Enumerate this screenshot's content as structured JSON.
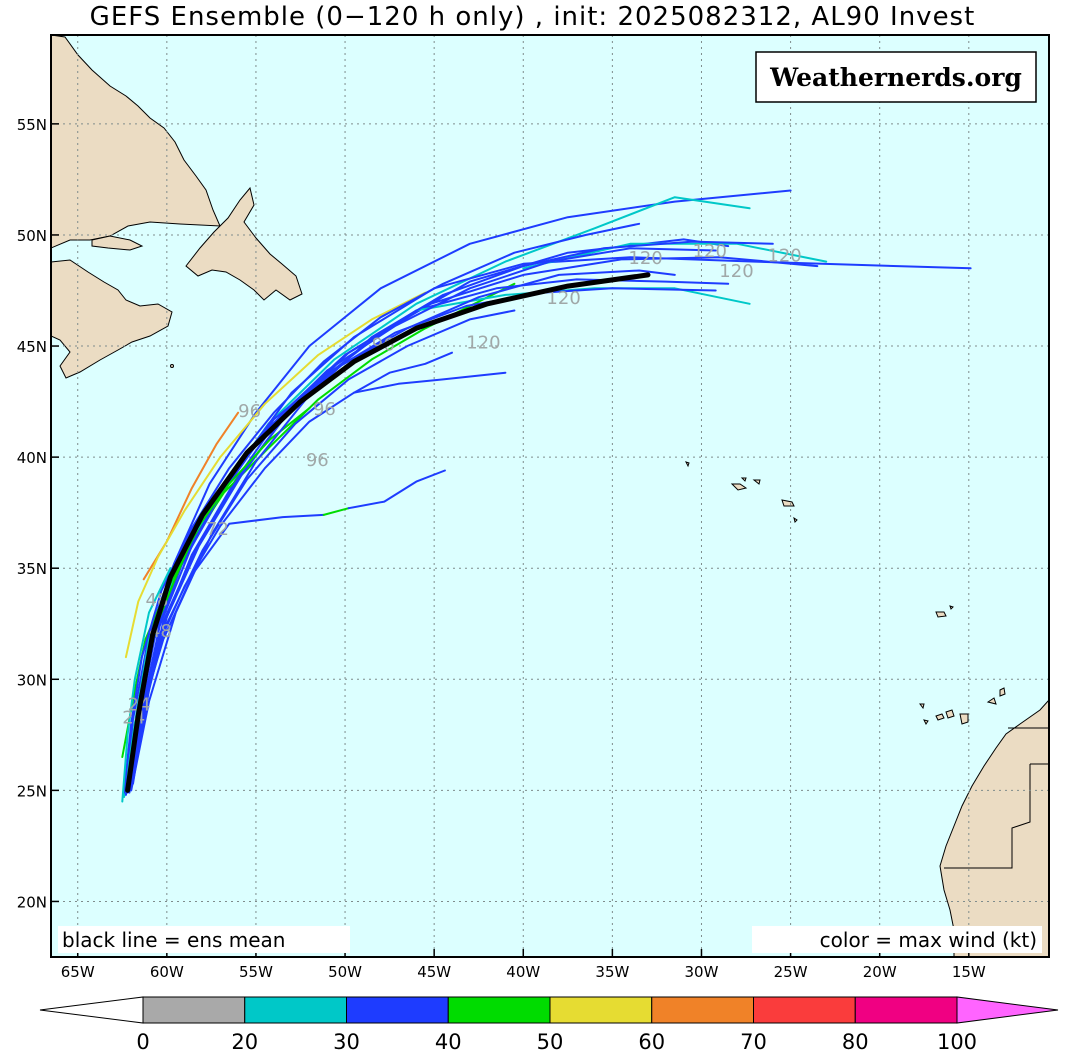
{
  "title": "GEFS Ensemble (0−120 h only) , init: 2025082312, AL90 Invest",
  "watermark": "Weathernerds.org",
  "note_left": "black line = ens mean",
  "note_right": "color = max wind (kt)",
  "lat_labels": [
    "55N",
    "50N",
    "45N",
    "40N",
    "35N",
    "30N",
    "25N",
    "20N"
  ],
  "lon_labels": [
    "65W",
    "60W",
    "55W",
    "50W",
    "45W",
    "40W",
    "35W",
    "30W",
    "25W",
    "20W",
    "15W"
  ],
  "colorbar": {
    "ticks": [
      "0",
      "20",
      "30",
      "40",
      "50",
      "60",
      "70",
      "80",
      "100"
    ],
    "colors": [
      "#a9a9a9",
      "#00c8c8",
      "#1e3cff",
      "#00dc00",
      "#e6dc32",
      "#f08228",
      "#fa3c3c",
      "#f00082"
    ],
    "low_arrow_color": "#ffffff",
    "high_arrow_color": "#ff64ff"
  },
  "map_colors": {
    "ocean": "#dcffff",
    "land": "#ebdcc3",
    "grid": "#7f8c8c"
  },
  "track_labels": [
    {
      "text": "120",
      "lon": -43.2,
      "lat": 44.9
    },
    {
      "text": "120",
      "lon": -38.7,
      "lat": 46.9
    },
    {
      "text": "120",
      "lon": -34.1,
      "lat": 48.7
    },
    {
      "text": "120",
      "lon": -30.5,
      "lat": 49.0
    },
    {
      "text": "120",
      "lon": -26.3,
      "lat": 48.8
    },
    {
      "text": "120",
      "lon": -29.0,
      "lat": 48.1
    },
    {
      "text": "96",
      "lon": -48.5,
      "lat": 44.8
    },
    {
      "text": "96",
      "lon": -56.0,
      "lat": 41.8
    },
    {
      "text": "96",
      "lon": -51.8,
      "lat": 41.9
    },
    {
      "text": "96",
      "lon": -52.2,
      "lat": 39.6
    },
    {
      "text": "72",
      "lon": -57.8,
      "lat": 36.5
    },
    {
      "text": "48",
      "lon": -61.2,
      "lat": 33.3
    },
    {
      "text": "48",
      "lon": -61.0,
      "lat": 31.9
    },
    {
      "text": "24",
      "lon": -62.5,
      "lat": 28.0
    },
    {
      "text": "24",
      "lon": -62.2,
      "lat": 28.6
    }
  ],
  "chart_data": {
    "type": "track-map",
    "lon_range": [
      -66.5,
      -10.5
    ],
    "lat_range": [
      17.5,
      59.0
    ],
    "ens_mean": {
      "name": "ens mean",
      "points": [
        [
          -62.2,
          25.0
        ],
        [
          -61.6,
          28.4
        ],
        [
          -60.8,
          32.0
        ],
        [
          -59.8,
          34.6
        ],
        [
          -58.0,
          37.4
        ],
        [
          -55.5,
          40.2
        ],
        [
          -52.5,
          42.5
        ],
        [
          -49.5,
          44.3
        ],
        [
          -46.0,
          45.8
        ],
        [
          -42.0,
          46.9
        ],
        [
          -37.5,
          47.7
        ],
        [
          -33.0,
          48.2
        ]
      ]
    },
    "members": [
      {
        "color": "#1e3cff",
        "points": [
          [
            -62.1,
            24.9
          ],
          [
            -61.6,
            28.2
          ],
          [
            -60.6,
            32.5
          ],
          [
            -59.2,
            35.2
          ],
          [
            -57.2,
            38.0
          ],
          [
            -54.8,
            40.8
          ],
          [
            -51.5,
            43.4
          ],
          [
            -47.6,
            45.8
          ],
          [
            -43.0,
            47.9
          ],
          [
            -37.5,
            49.2
          ],
          [
            -31.0,
            49.8
          ],
          [
            -28.5,
            49.5
          ]
        ]
      },
      {
        "color": "#1e3cff",
        "points": [
          [
            -62.0,
            25.1
          ],
          [
            -61.3,
            28.8
          ],
          [
            -60.4,
            32.0
          ],
          [
            -58.6,
            35.6
          ],
          [
            -56.2,
            38.9
          ],
          [
            -53.5,
            42.0
          ],
          [
            -50.0,
            44.6
          ],
          [
            -45.2,
            46.9
          ],
          [
            -40.0,
            48.2
          ],
          [
            -34.5,
            48.9
          ],
          [
            -29.0,
            49.0
          ],
          [
            -23.5,
            48.6
          ]
        ]
      },
      {
        "color": "#1e3cff",
        "points": [
          [
            -62.3,
            24.8
          ],
          [
            -61.9,
            28.2
          ],
          [
            -61.0,
            32.0
          ],
          [
            -59.6,
            35.2
          ],
          [
            -57.6,
            38.8
          ],
          [
            -55.0,
            42.0
          ],
          [
            -52.0,
            45.0
          ],
          [
            -48.0,
            47.6
          ],
          [
            -43.0,
            49.6
          ],
          [
            -37.5,
            50.8
          ],
          [
            -31.5,
            51.5
          ],
          [
            -25.0,
            52.0
          ]
        ]
      },
      {
        "color": "#00c8c8",
        "points": [
          [
            -62.4,
            24.7
          ],
          [
            -61.8,
            28.0
          ],
          [
            -61.0,
            31.8
          ],
          [
            -59.4,
            35.0
          ],
          [
            -57.2,
            38.2
          ],
          [
            -54.3,
            41.5
          ],
          [
            -50.6,
            44.4
          ],
          [
            -46.0,
            46.9
          ],
          [
            -41.0,
            48.8
          ],
          [
            -36.0,
            50.3
          ],
          [
            -31.5,
            51.7
          ],
          [
            -27.3,
            51.2
          ]
        ]
      },
      {
        "color": "#1e3cff",
        "points": [
          [
            -62.0,
            25.2
          ],
          [
            -61.4,
            28.6
          ],
          [
            -60.4,
            32.4
          ],
          [
            -58.6,
            36.0
          ],
          [
            -56.0,
            39.6
          ],
          [
            -53.0,
            42.9
          ],
          [
            -49.5,
            45.4
          ],
          [
            -45.0,
            47.6
          ],
          [
            -40.0,
            48.7
          ],
          [
            -34.0,
            49.0
          ],
          [
            -27.0,
            48.8
          ],
          [
            -19.0,
            48.6
          ],
          [
            -14.9,
            48.5
          ]
        ]
      },
      {
        "color": "#1e3cff",
        "points": [
          [
            -62.2,
            24.9
          ],
          [
            -61.5,
            28.3
          ],
          [
            -60.2,
            31.8
          ],
          [
            -58.5,
            34.8
          ],
          [
            -56.5,
            37.0
          ],
          [
            -53.5,
            37.3
          ],
          [
            -51.2,
            37.4
          ]
        ]
      },
      {
        "color": "#00dc00",
        "points": [
          [
            -51.2,
            37.4
          ],
          [
            -49.8,
            37.7
          ]
        ]
      },
      {
        "color": "#1e3cff",
        "points": [
          [
            -49.8,
            37.7
          ],
          [
            -47.8,
            38.0
          ],
          [
            -46.0,
            38.9
          ],
          [
            -44.4,
            39.4
          ]
        ]
      },
      {
        "color": "#1e3cff",
        "points": [
          [
            -62.1,
            25.0
          ],
          [
            -61.5,
            28.3
          ],
          [
            -60.5,
            31.5
          ],
          [
            -59.0,
            34.2
          ],
          [
            -57.0,
            36.9
          ],
          [
            -54.5,
            39.5
          ],
          [
            -52.0,
            41.6
          ],
          [
            -49.5,
            42.9
          ],
          [
            -47.5,
            43.8
          ],
          [
            -45.5,
            44.2
          ],
          [
            -44.0,
            44.7
          ]
        ]
      },
      {
        "color": "#1e3cff",
        "points": [
          [
            -49.5,
            42.9
          ],
          [
            -47.0,
            43.3
          ],
          [
            -44.5,
            43.5
          ],
          [
            -41.0,
            43.8
          ]
        ]
      },
      {
        "color": "#00dc00",
        "points": [
          [
            -62.5,
            26.5
          ],
          [
            -61.8,
            29.5
          ],
          [
            -61.2,
            31.8
          ],
          [
            -60.0,
            34.0
          ],
          [
            -58.6,
            36.2
          ],
          [
            -56.8,
            38.4
          ],
          [
            -54.3,
            40.4
          ],
          [
            -51.5,
            42.6
          ],
          [
            -48.5,
            44.4
          ],
          [
            -45.5,
            45.8
          ],
          [
            -42.5,
            47.0
          ],
          [
            -40.5,
            47.8
          ]
        ]
      },
      {
        "color": "#f08228",
        "points": [
          [
            -61.3,
            34.5
          ],
          [
            -60.0,
            36.2
          ],
          [
            -58.6,
            38.6
          ],
          [
            -57.2,
            40.6
          ],
          [
            -56.0,
            42.0
          ]
        ]
      },
      {
        "color": "#e6dc32",
        "points": [
          [
            -62.3,
            31.0
          ],
          [
            -61.6,
            33.5
          ],
          [
            -60.5,
            35.5
          ],
          [
            -59.0,
            37.6
          ],
          [
            -57.0,
            40.0
          ],
          [
            -54.5,
            42.4
          ],
          [
            -51.5,
            44.6
          ],
          [
            -48.5,
            46.2
          ],
          [
            -45.5,
            47.4
          ]
        ]
      },
      {
        "color": "#1e3cff",
        "points": [
          [
            -61.8,
            26.0
          ],
          [
            -61.0,
            29.5
          ],
          [
            -60.0,
            32.8
          ],
          [
            -58.2,
            36.0
          ],
          [
            -55.8,
            39.2
          ],
          [
            -53.0,
            42.2
          ],
          [
            -49.8,
            44.7
          ],
          [
            -46.0,
            46.6
          ],
          [
            -41.5,
            47.6
          ],
          [
            -37.0,
            48.0
          ],
          [
            -32.0,
            47.9
          ],
          [
            -28.5,
            47.8
          ]
        ]
      },
      {
        "color": "#00c8c8",
        "points": [
          [
            -46.0,
            46.6
          ],
          [
            -41.0,
            47.3
          ],
          [
            -36.0,
            47.6
          ],
          [
            -31.5,
            47.6
          ],
          [
            -27.3,
            46.9
          ]
        ]
      },
      {
        "color": "#1e3cff",
        "points": [
          [
            -62.0,
            25.5
          ],
          [
            -61.2,
            29.0
          ],
          [
            -60.0,
            32.5
          ],
          [
            -58.0,
            35.8
          ],
          [
            -55.5,
            39.0
          ],
          [
            -52.8,
            41.5
          ],
          [
            -49.8,
            43.5
          ],
          [
            -46.5,
            45.0
          ],
          [
            -43.0,
            46.2
          ],
          [
            -40.5,
            46.6
          ]
        ]
      },
      {
        "color": "#00c8c8",
        "points": [
          [
            -40.0,
            48.5
          ],
          [
            -34.0,
            49.6
          ],
          [
            -28.0,
            49.6
          ],
          [
            -23.0,
            48.8
          ]
        ]
      },
      {
        "color": "#1e3cff",
        "points": [
          [
            -62.2,
            25.0
          ],
          [
            -61.5,
            28.5
          ],
          [
            -60.6,
            32.2
          ],
          [
            -59.0,
            35.5
          ],
          [
            -56.8,
            38.6
          ],
          [
            -54.0,
            41.7
          ],
          [
            -50.5,
            44.0
          ],
          [
            -46.5,
            45.8
          ],
          [
            -42.5,
            47.2
          ],
          [
            -38.0,
            48.2
          ],
          [
            -33.5,
            48.4
          ],
          [
            -31.5,
            48.2
          ]
        ]
      },
      {
        "color": "#1e3cff",
        "points": [
          [
            -62.3,
            24.8
          ],
          [
            -61.7,
            28.1
          ],
          [
            -60.8,
            31.6
          ],
          [
            -59.2,
            35.1
          ],
          [
            -57.0,
            38.3
          ],
          [
            -54.3,
            41.3
          ],
          [
            -51.0,
            43.9
          ],
          [
            -47.2,
            45.9
          ],
          [
            -43.0,
            47.6
          ],
          [
            -38.5,
            48.8
          ],
          [
            -34.0,
            49.4
          ],
          [
            -29.2,
            49.3
          ]
        ]
      },
      {
        "color": "#1e3cff",
        "points": [
          [
            -61.9,
            25.3
          ],
          [
            -61.2,
            28.9
          ],
          [
            -60.2,
            32.6
          ],
          [
            -58.4,
            35.8
          ],
          [
            -56.2,
            38.8
          ],
          [
            -53.6,
            41.6
          ],
          [
            -50.7,
            43.9
          ],
          [
            -47.2,
            45.6
          ],
          [
            -43.2,
            46.8
          ],
          [
            -39.0,
            47.4
          ],
          [
            -35.0,
            47.6
          ],
          [
            -29.2,
            47.5
          ]
        ]
      },
      {
        "color": "#00dc00",
        "points": [
          [
            -62.0,
            26.5
          ],
          [
            -61.3,
            29.8
          ],
          [
            -60.6,
            32.4
          ],
          [
            -59.5,
            34.6
          ],
          [
            -58.3,
            36.8
          ],
          [
            -56.5,
            38.8
          ],
          [
            -54.2,
            40.8
          ],
          [
            -52.0,
            42.2
          ]
        ]
      },
      {
        "color": "#1e3cff",
        "points": [
          [
            -62.4,
            24.9
          ],
          [
            -62.0,
            28.0
          ],
          [
            -61.4,
            31.0
          ],
          [
            -60.3,
            34.0
          ],
          [
            -58.6,
            36.8
          ],
          [
            -56.5,
            39.5
          ],
          [
            -54.0,
            42.0
          ],
          [
            -51.2,
            44.3
          ],
          [
            -48.0,
            46.3
          ],
          [
            -44.5,
            47.8
          ],
          [
            -40.5,
            49.2
          ],
          [
            -36.5,
            50.0
          ],
          [
            -33.5,
            50.5
          ]
        ]
      },
      {
        "color": "#00c8c8",
        "points": [
          [
            -62.5,
            24.5
          ],
          [
            -62.2,
            27.5
          ],
          [
            -61.8,
            30.0
          ],
          [
            -61.0,
            33.0
          ],
          [
            -59.8,
            35.0
          ]
        ]
      },
      {
        "color": "#1e3cff",
        "points": [
          [
            -62.0,
            25.0
          ],
          [
            -61.0,
            29.0
          ],
          [
            -59.5,
            33.0
          ],
          [
            -57.5,
            36.5
          ],
          [
            -55.0,
            39.8
          ],
          [
            -52.0,
            42.8
          ],
          [
            -48.5,
            45.4
          ],
          [
            -44.5,
            47.3
          ],
          [
            -40.0,
            48.6
          ],
          [
            -35.5,
            49.4
          ],
          [
            -30.5,
            49.7
          ],
          [
            -26.0,
            49.6
          ]
        ]
      }
    ]
  }
}
